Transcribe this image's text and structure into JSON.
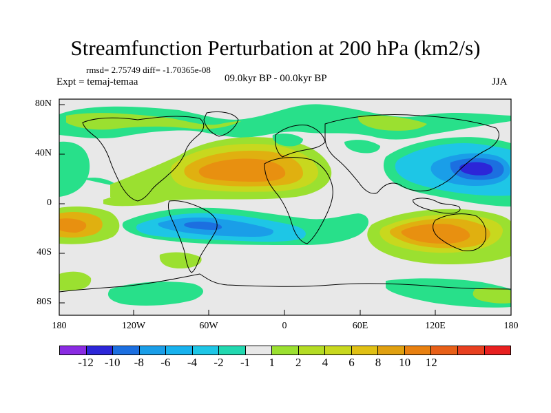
{
  "title": "Streamfunction Perturbation at 200 hPa (km2/s)",
  "stats": "rmsd= 2.75749 diff= -1.70365e-08",
  "experiment": "Expt = temaj-temaa",
  "period": "09.0kyr BP - 00.0kyr BP",
  "season": "JJA",
  "colors": {
    "background": "#e8e8e8",
    "coastline": "#000000",
    "neg12": "#8a2be2",
    "neg10": "#2c26d8",
    "neg8": "#1c6fe0",
    "neg6": "#1a9ee8",
    "neg4": "#1ec6e6",
    "neg2": "#22d8b0",
    "neg1": "#28e08a",
    "pos1": "#e8e8e8",
    "pos2": "#9be030",
    "pos4": "#c8d81e",
    "pos6": "#e0b010",
    "pos8": "#e89010",
    "pos10": "#e86018",
    "pos12": "#e83020"
  },
  "y_ticks": [
    "80N",
    "40N",
    "0",
    "40S",
    "80S"
  ],
  "x_ticks": [
    "180",
    "120W",
    "60W",
    "0",
    "60E",
    "120E",
    "180"
  ],
  "colorbar": {
    "colors": [
      "#8a2be2",
      "#2c26d8",
      "#1c6fe0",
      "#1a9ee8",
      "#18b2ee",
      "#1ec6e6",
      "#22d8b0",
      "#e8e8e8",
      "#9be030",
      "#b4dc24",
      "#c8d81e",
      "#e0c014",
      "#e0a010",
      "#e88010",
      "#e86018",
      "#e84020",
      "#e82020"
    ],
    "labels": [
      "-12",
      "-10",
      "-8",
      "-6",
      "-4",
      "-2",
      "-1",
      "1",
      "2",
      "4",
      "6",
      "8",
      "10",
      "12"
    ]
  },
  "map_layers": [
    {
      "name": "nh-green-arctic-band",
      "color": "#28e08a"
    },
    {
      "name": "nh-yellow-arctic-band",
      "color": "#9be030"
    },
    {
      "name": "atlantic-high-anomaly",
      "color": "#e0b010"
    },
    {
      "name": "atlantic-high-core",
      "color": "#e89010"
    },
    {
      "name": "pacific-low-anomaly",
      "color": "#1a9ee8"
    },
    {
      "name": "pacific-low-core",
      "color": "#2c26d8"
    },
    {
      "name": "south-atlantic-low-anomaly",
      "color": "#1ec6e6"
    },
    {
      "name": "indian-ocean-high-anomaly",
      "color": "#e0b010"
    },
    {
      "name": "south-pacific-high-anomaly",
      "color": "#e0b010"
    }
  ]
}
